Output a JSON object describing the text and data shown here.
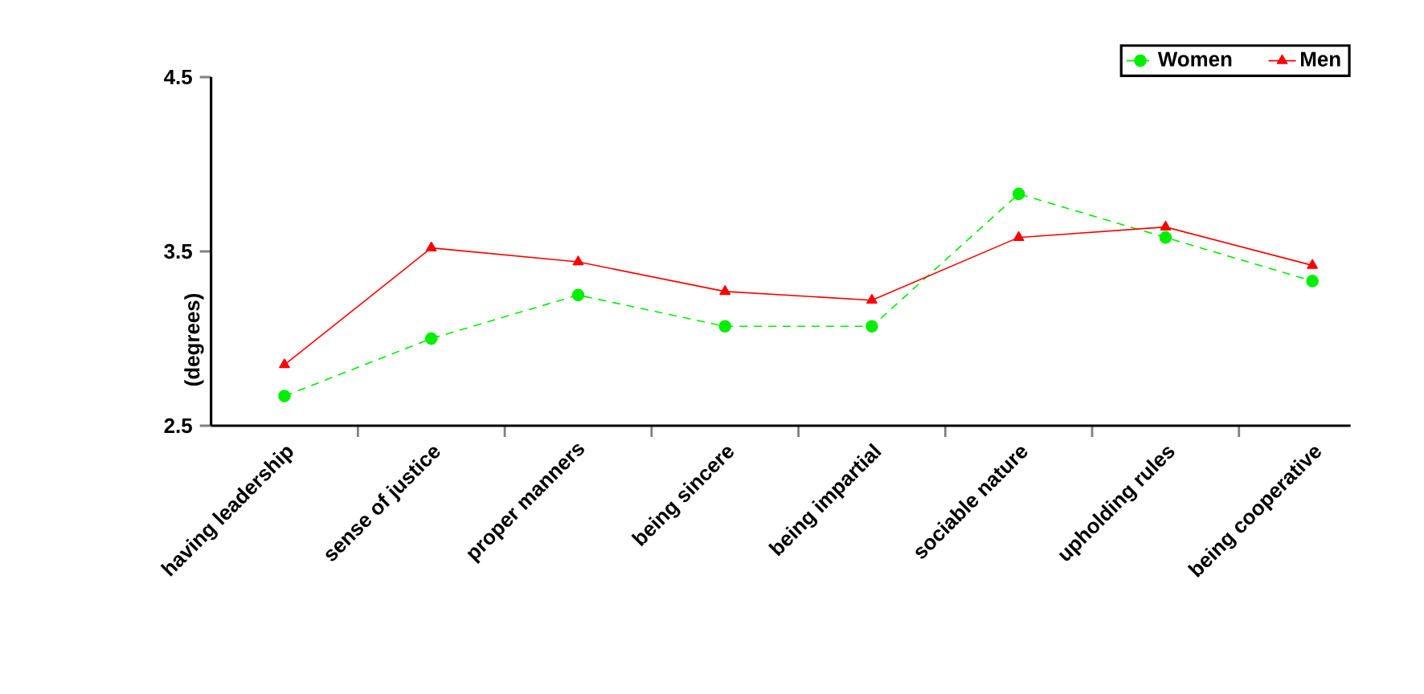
{
  "chart_data": {
    "type": "line",
    "ylabel": "(degrees)",
    "categories": [
      "having leadership",
      "sense of justice",
      "proper manners",
      "being sincere",
      "being impartial",
      "sociable nature",
      "upholding rules",
      "being cooperative"
    ],
    "series": [
      {
        "name": "Women",
        "color": "#00ee00",
        "marker": "circle",
        "line_style": "dashed",
        "values": [
          2.67,
          3.0,
          3.25,
          3.07,
          3.07,
          3.83,
          3.58,
          3.33
        ]
      },
      {
        "name": "Men",
        "color": "#ff0000",
        "marker": "triangle",
        "line_style": "solid",
        "values": [
          2.85,
          3.52,
          3.44,
          3.27,
          3.22,
          3.58,
          3.64,
          3.42
        ]
      }
    ],
    "ylim": [
      2.5,
      4.5
    ],
    "yticks": [
      2.5,
      3.5,
      4.5
    ],
    "legend": "top right",
    "grid": false
  }
}
